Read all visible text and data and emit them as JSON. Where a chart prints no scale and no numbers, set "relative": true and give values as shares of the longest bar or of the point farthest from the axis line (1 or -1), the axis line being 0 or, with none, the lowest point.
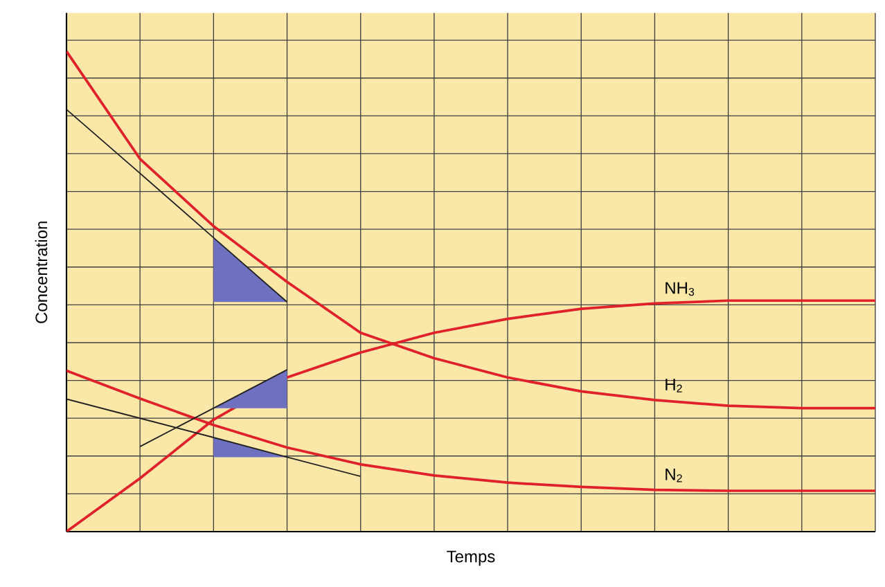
{
  "chart_data": {
    "type": "line",
    "relative": true,
    "grid": true,
    "tick_labels": false,
    "xlabel": "Temps",
    "ylabel": "Concentration",
    "categories": [
      null,
      null,
      null,
      null,
      null,
      null,
      null,
      null,
      null,
      null,
      null,
      null
    ],
    "series": [
      {
        "name": "NH$_{3}$",
        "color": "#e0202a",
        "values": [
          0,
          0.111,
          0.233,
          0.321,
          0.373,
          0.414,
          0.443,
          0.464,
          0.475,
          0.481,
          0.481,
          0.481
        ]
      },
      {
        "name": "H$_{2}$",
        "color": "#e0202a",
        "values": [
          1,
          0.776,
          0.636,
          0.52,
          0.414,
          0.361,
          0.321,
          0.292,
          0.274,
          0.262,
          0.257,
          0.257
        ]
      },
      {
        "name": "N$_{2}$",
        "color": "#e0202a",
        "values": [
          0.335,
          0.277,
          0.222,
          0.175,
          0.14,
          0.117,
          0.102,
          0.093,
          0.087,
          0.085,
          0.085,
          0.085
        ]
      },
      {
        "color": "#222222",
        "values": [
          0.879,
          0.746,
          0.612,
          0.478,
          null,
          null,
          null,
          null,
          null,
          null,
          null,
          null
        ]
      },
      {
        "color": "#222222",
        "values": [
          null,
          0.177,
          0.257,
          0.337,
          null,
          null,
          null,
          null,
          null,
          null,
          null,
          null
        ]
      },
      {
        "color": "#222222",
        "values": [
          0.276,
          0.236,
          0.196,
          0.155,
          0.115,
          null,
          null,
          null,
          null,
          null,
          null,
          null
        ]
      }
    ]
  }
}
